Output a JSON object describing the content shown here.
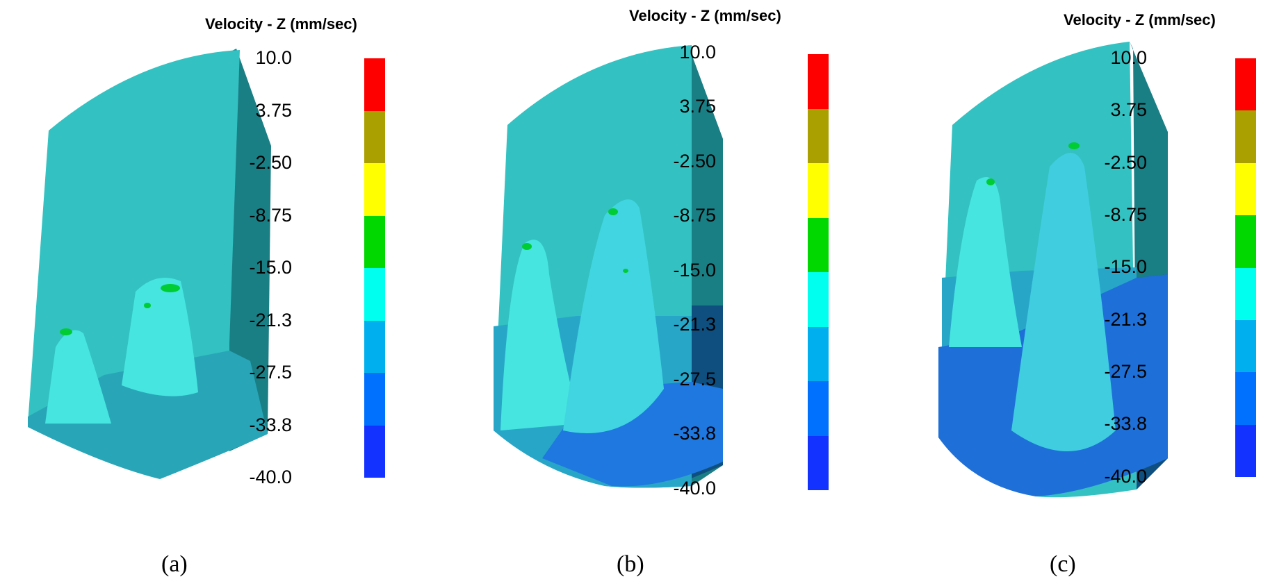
{
  "legend": {
    "title": "Velocity - Z (mm/sec)",
    "levels": [
      "10.0",
      "3.75",
      "-2.50",
      "-8.75",
      "-15.0",
      "-21.3",
      "-27.5",
      "-33.8",
      "-40.0"
    ],
    "colors": [
      "#ff0000",
      "#aaa000",
      "#ffff00",
      "#00d800",
      "#00ffee",
      "#00b0ee",
      "#0070ff",
      "#1432ff"
    ]
  },
  "panels": [
    {
      "caption": "(a)"
    },
    {
      "caption": "(b)"
    },
    {
      "caption": "(c)"
    }
  ]
}
